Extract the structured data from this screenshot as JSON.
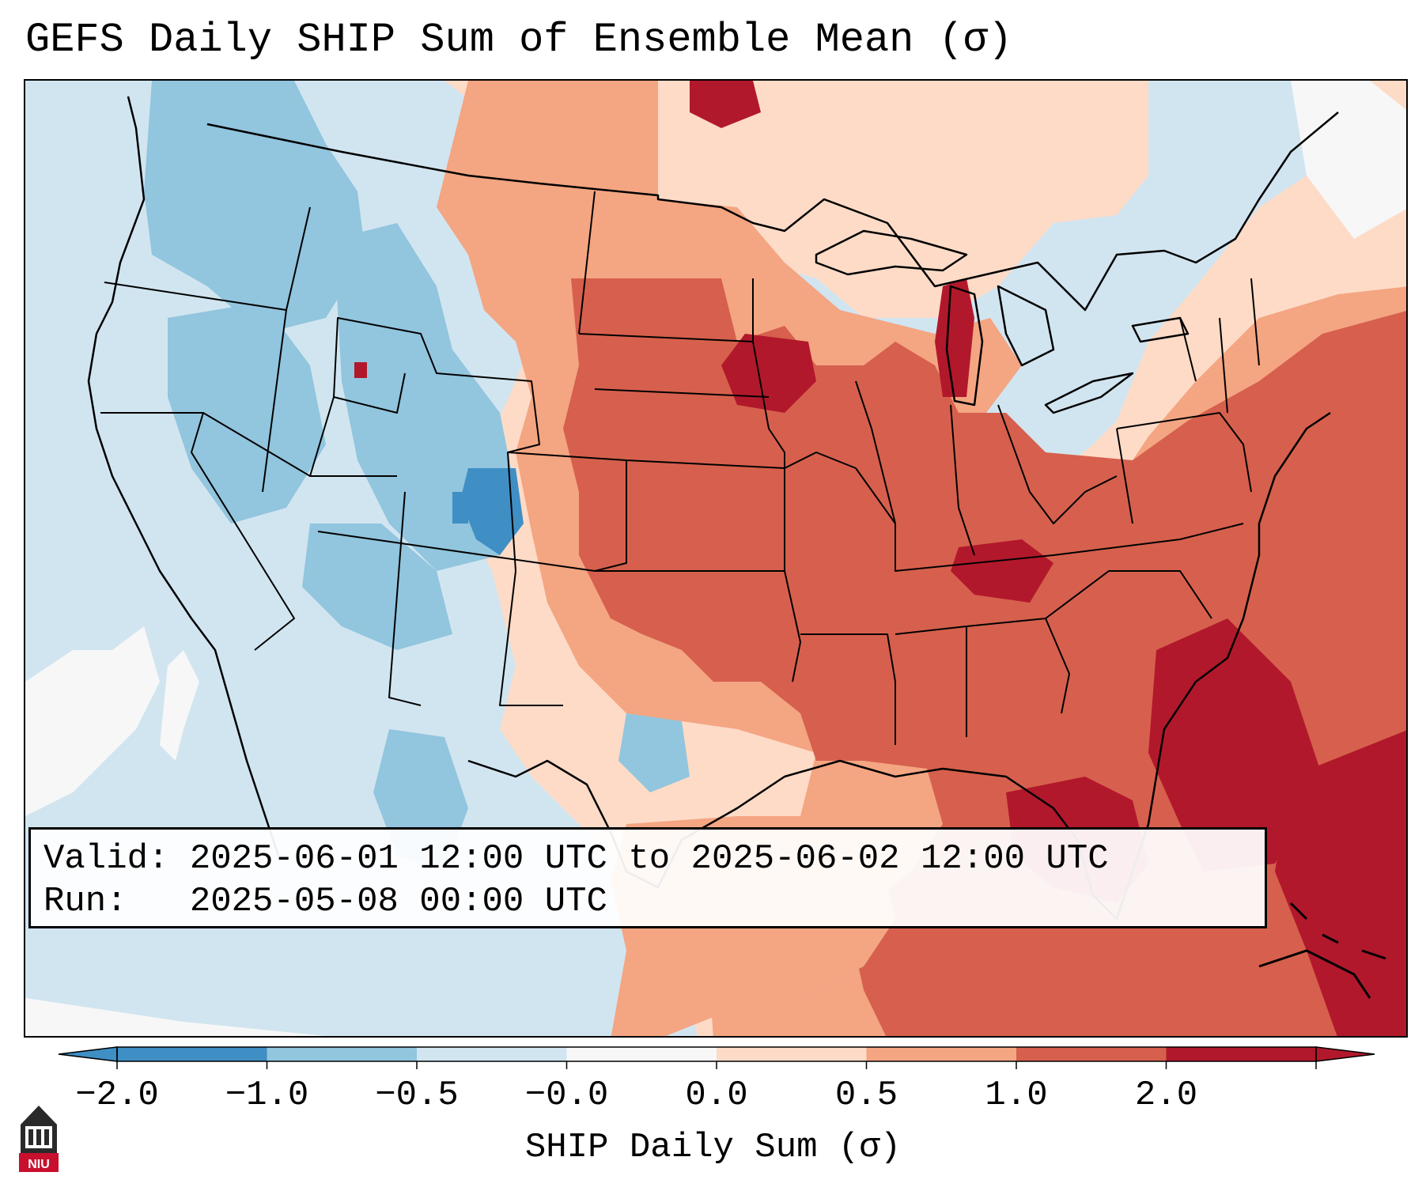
{
  "title": "GEFS Daily SHIP Sum of Ensemble Mean (σ)",
  "info": {
    "valid_label": "Valid:",
    "valid_value": "2025-06-01 12:00 UTC to 2025-06-02 12:00 UTC",
    "run_label": "Run:",
    "run_value": "2025-05-08 00:00 UTC"
  },
  "colorbar": {
    "label": "SHIP Daily Sum (σ)",
    "ticks": [
      "−2.0",
      "−1.0",
      "−0.5",
      "−0.0",
      "0.0",
      "0.5",
      "1.0",
      "2.0"
    ],
    "colors": [
      "#3f8fc5",
      "#92c5de",
      "#d1e5f0",
      "#f7f7f7",
      "#fddbc7",
      "#f4a582",
      "#d6604d",
      "#b2182b"
    ],
    "extend": "both"
  },
  "logo": {
    "text": "NIU"
  },
  "map": {
    "region": "Contiguous United States",
    "colors": {
      "strong_negative": "#3f8fc5",
      "negative": "#92c5de",
      "weak_negative": "#d1e5f0",
      "neutral": "#f7f7f7",
      "weak_positive": "#fddbc7",
      "positive": "#f4a582",
      "strong_positive": "#d6604d",
      "extreme_positive": "#b2182b"
    }
  }
}
